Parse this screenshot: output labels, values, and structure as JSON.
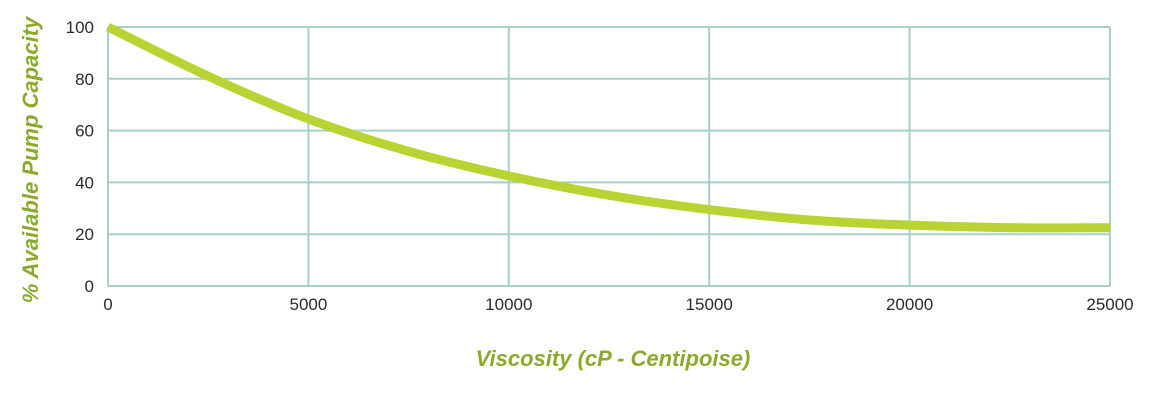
{
  "chart_data": {
    "type": "line",
    "title": "",
    "xlabel": "Viscosity (cP - Centipoise)",
    "ylabel": "% Available Pump Capacity",
    "xlim": [
      0,
      25000
    ],
    "ylim": [
      0,
      100
    ],
    "x_ticks": [
      0,
      5000,
      10000,
      15000,
      20000,
      25000
    ],
    "y_ticks": [
      0,
      20,
      40,
      60,
      80,
      100
    ],
    "grid": true,
    "legend": "none",
    "series": [
      {
        "x": [
          0,
          2500,
          5000,
          7500,
          10000,
          12500,
          15000,
          17500,
          20000,
          22500,
          25000
        ],
        "y": [
          100,
          81,
          64.5,
          52,
          42.5,
          35,
          29.5,
          25.5,
          23.5,
          22.5,
          22.5
        ]
      }
    ],
    "colors": {
      "line": "#b8d432",
      "grid": "#a9cfc8",
      "axis_title": "#8aaa2a",
      "tick_text": "#2b2b2b"
    }
  }
}
